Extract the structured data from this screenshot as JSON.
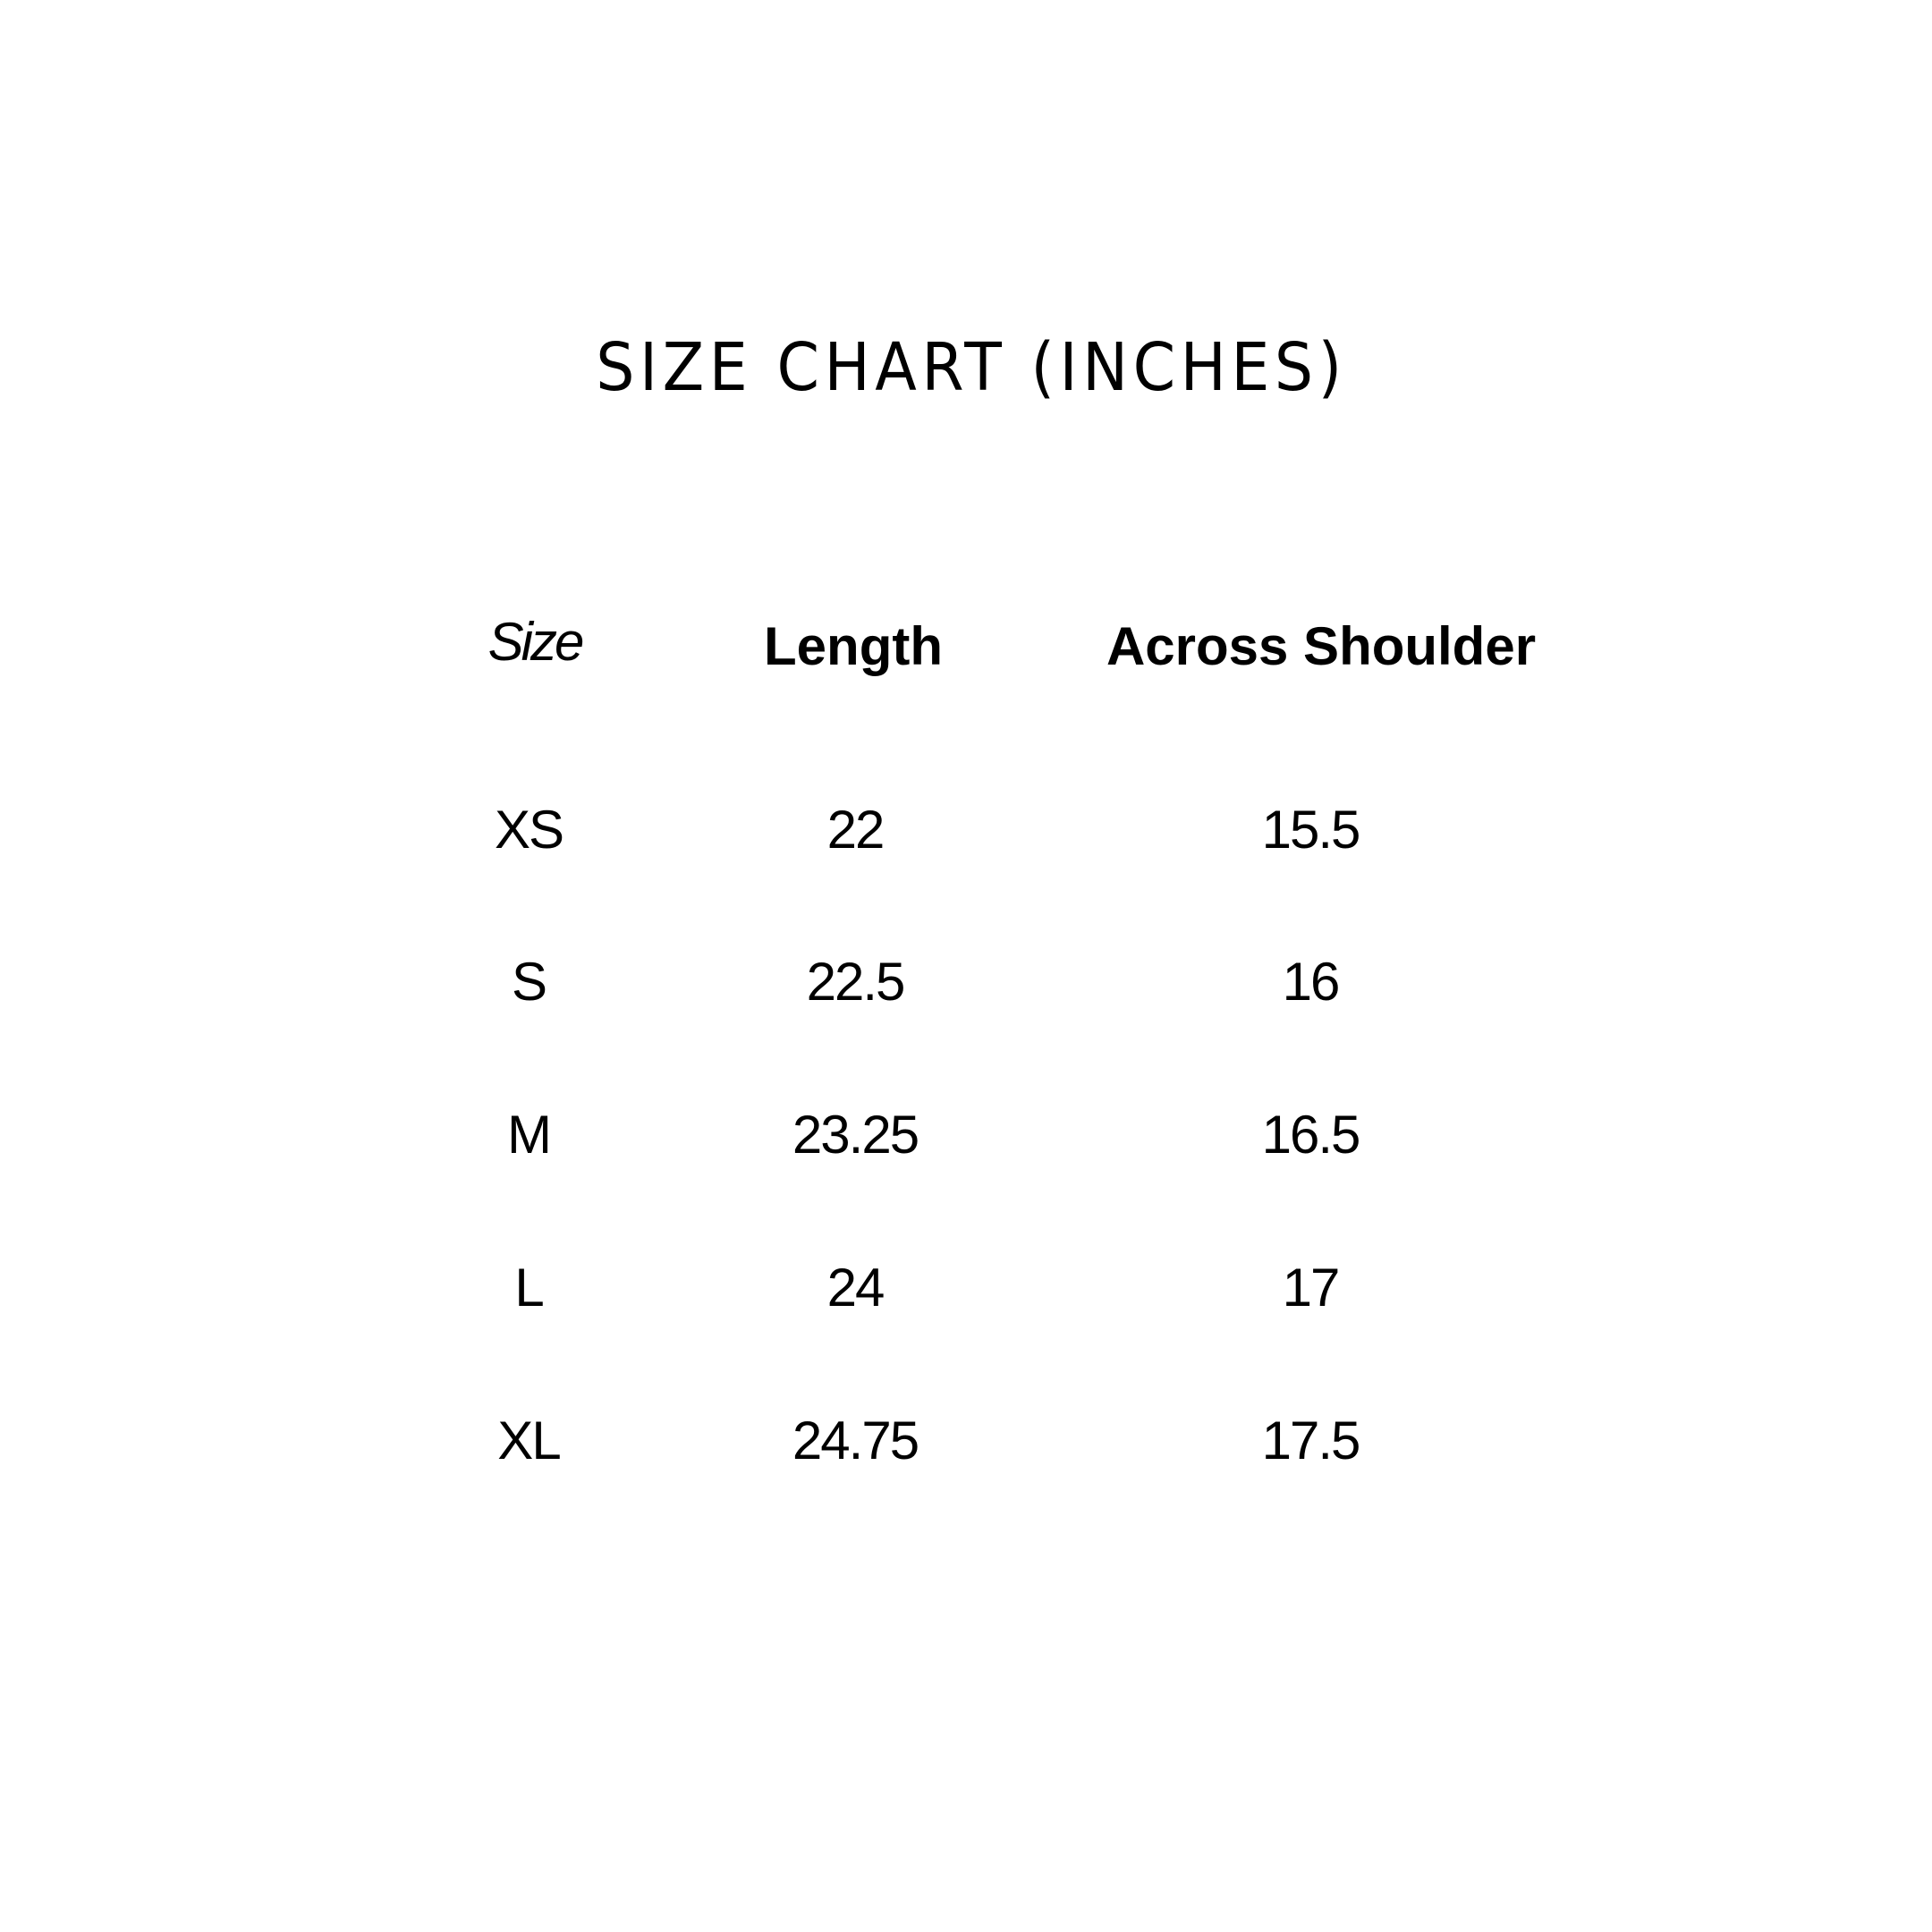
{
  "title": "SIZE CHART (INCHES)",
  "headers": {
    "size": "Size",
    "length": "Length",
    "shoulder": "Across Shoulder"
  },
  "rows": [
    {
      "size": "XS",
      "length": "22",
      "shoulder": "15.5"
    },
    {
      "size": "S",
      "length": "22.5",
      "shoulder": "16"
    },
    {
      "size": "M",
      "length": "23.25",
      "shoulder": "16.5"
    },
    {
      "size": "L",
      "length": "24",
      "shoulder": "17"
    },
    {
      "size": "XL",
      "length": "24.75",
      "shoulder": "17.5"
    }
  ]
}
